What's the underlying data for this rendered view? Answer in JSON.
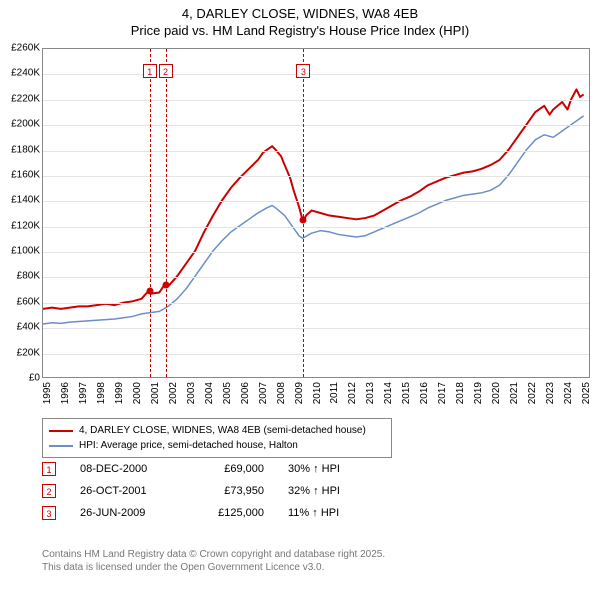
{
  "title": {
    "line1": "4, DARLEY CLOSE, WIDNES, WA8 4EB",
    "line2": "Price paid vs. HM Land Registry's House Price Index (HPI)"
  },
  "chart": {
    "type": "line",
    "plot_bg": "#ffffff",
    "border_color": "#888888",
    "grid_color": "#e4e4e4",
    "x": {
      "min": 1995,
      "max": 2025.5,
      "ticks": [
        1995,
        1996,
        1997,
        1998,
        1999,
        2000,
        2001,
        2002,
        2003,
        2004,
        2005,
        2006,
        2007,
        2008,
        2009,
        2010,
        2011,
        2012,
        2013,
        2014,
        2015,
        2016,
        2017,
        2018,
        2019,
        2020,
        2021,
        2022,
        2023,
        2024,
        2025
      ],
      "tick_fontsize": 10,
      "tick_rotation_deg": -90
    },
    "y": {
      "min": 0,
      "max": 260000,
      "ticks": [
        0,
        20000,
        40000,
        60000,
        80000,
        100000,
        120000,
        140000,
        160000,
        180000,
        200000,
        220000,
        240000,
        260000
      ],
      "tick_labels": [
        "£0",
        "£20K",
        "£40K",
        "£60K",
        "£80K",
        "£100K",
        "£120K",
        "£140K",
        "£160K",
        "£180K",
        "£200K",
        "£220K",
        "£240K",
        "£260K"
      ],
      "tick_fontsize": 10
    },
    "series": [
      {
        "id": "price_paid",
        "label": "4, DARLEY CLOSE, WIDNES, WA8 4EB (semi-detached house)",
        "color": "#cc0000",
        "line_width": 2,
        "points": [
          [
            1995.0,
            54000
          ],
          [
            1995.5,
            55000
          ],
          [
            1996.0,
            54000
          ],
          [
            1996.5,
            55000
          ],
          [
            1997.0,
            56000
          ],
          [
            1997.5,
            56000
          ],
          [
            1998.0,
            57000
          ],
          [
            1998.5,
            58000
          ],
          [
            1999.0,
            57000
          ],
          [
            1999.5,
            59000
          ],
          [
            2000.0,
            60000
          ],
          [
            2000.5,
            62000
          ],
          [
            2000.94,
            69000
          ],
          [
            2001.0,
            66000
          ],
          [
            2001.5,
            67000
          ],
          [
            2001.82,
            73950
          ],
          [
            2002.0,
            72000
          ],
          [
            2002.5,
            80000
          ],
          [
            2003.0,
            90000
          ],
          [
            2003.5,
            100000
          ],
          [
            2004.0,
            115000
          ],
          [
            2004.5,
            128000
          ],
          [
            2005.0,
            140000
          ],
          [
            2005.5,
            150000
          ],
          [
            2006.0,
            158000
          ],
          [
            2006.5,
            165000
          ],
          [
            2007.0,
            172000
          ],
          [
            2007.3,
            178000
          ],
          [
            2007.5,
            180000
          ],
          [
            2007.8,
            183000
          ],
          [
            2008.0,
            180000
          ],
          [
            2008.3,
            175000
          ],
          [
            2008.5,
            168000
          ],
          [
            2008.8,
            158000
          ],
          [
            2009.0,
            148000
          ],
          [
            2009.3,
            135000
          ],
          [
            2009.49,
            125000
          ],
          [
            2009.5,
            123000
          ],
          [
            2009.7,
            128000
          ],
          [
            2010.0,
            132000
          ],
          [
            2010.5,
            130000
          ],
          [
            2011.0,
            128000
          ],
          [
            2011.5,
            127000
          ],
          [
            2012.0,
            126000
          ],
          [
            2012.5,
            125000
          ],
          [
            2013.0,
            126000
          ],
          [
            2013.5,
            128000
          ],
          [
            2014.0,
            132000
          ],
          [
            2014.5,
            136000
          ],
          [
            2015.0,
            140000
          ],
          [
            2015.5,
            143000
          ],
          [
            2016.0,
            147000
          ],
          [
            2016.5,
            152000
          ],
          [
            2017.0,
            155000
          ],
          [
            2017.5,
            158000
          ],
          [
            2018.0,
            160000
          ],
          [
            2018.5,
            162000
          ],
          [
            2019.0,
            163000
          ],
          [
            2019.5,
            165000
          ],
          [
            2020.0,
            168000
          ],
          [
            2020.5,
            172000
          ],
          [
            2021.0,
            180000
          ],
          [
            2021.5,
            190000
          ],
          [
            2022.0,
            200000
          ],
          [
            2022.5,
            210000
          ],
          [
            2023.0,
            215000
          ],
          [
            2023.3,
            208000
          ],
          [
            2023.5,
            212000
          ],
          [
            2024.0,
            218000
          ],
          [
            2024.3,
            212000
          ],
          [
            2024.5,
            220000
          ],
          [
            2024.8,
            228000
          ],
          [
            2025.0,
            222000
          ],
          [
            2025.2,
            224000
          ]
        ]
      },
      {
        "id": "hpi",
        "label": "HPI: Average price, semi-detached house, Halton",
        "color": "#6a8fc5",
        "line_width": 1.5,
        "points": [
          [
            1995.0,
            42000
          ],
          [
            1995.5,
            43000
          ],
          [
            1996.0,
            42500
          ],
          [
            1996.5,
            43500
          ],
          [
            1997.0,
            44000
          ],
          [
            1997.5,
            44500
          ],
          [
            1998.0,
            45000
          ],
          [
            1998.5,
            45500
          ],
          [
            1999.0,
            46000
          ],
          [
            1999.5,
            47000
          ],
          [
            2000.0,
            48000
          ],
          [
            2000.5,
            50000
          ],
          [
            2001.0,
            51000
          ],
          [
            2001.5,
            52000
          ],
          [
            2002.0,
            56000
          ],
          [
            2002.5,
            62000
          ],
          [
            2003.0,
            70000
          ],
          [
            2003.5,
            80000
          ],
          [
            2004.0,
            90000
          ],
          [
            2004.5,
            100000
          ],
          [
            2005.0,
            108000
          ],
          [
            2005.5,
            115000
          ],
          [
            2006.0,
            120000
          ],
          [
            2006.5,
            125000
          ],
          [
            2007.0,
            130000
          ],
          [
            2007.5,
            134000
          ],
          [
            2007.8,
            136000
          ],
          [
            2008.0,
            134000
          ],
          [
            2008.5,
            128000
          ],
          [
            2009.0,
            118000
          ],
          [
            2009.3,
            112000
          ],
          [
            2009.5,
            110000
          ],
          [
            2010.0,
            114000
          ],
          [
            2010.5,
            116000
          ],
          [
            2011.0,
            115000
          ],
          [
            2011.5,
            113000
          ],
          [
            2012.0,
            112000
          ],
          [
            2012.5,
            111000
          ],
          [
            2013.0,
            112000
          ],
          [
            2013.5,
            115000
          ],
          [
            2014.0,
            118000
          ],
          [
            2014.5,
            121000
          ],
          [
            2015.0,
            124000
          ],
          [
            2015.5,
            127000
          ],
          [
            2016.0,
            130000
          ],
          [
            2016.5,
            134000
          ],
          [
            2017.0,
            137000
          ],
          [
            2017.5,
            140000
          ],
          [
            2018.0,
            142000
          ],
          [
            2018.5,
            144000
          ],
          [
            2019.0,
            145000
          ],
          [
            2019.5,
            146000
          ],
          [
            2020.0,
            148000
          ],
          [
            2020.5,
            152000
          ],
          [
            2021.0,
            160000
          ],
          [
            2021.5,
            170000
          ],
          [
            2022.0,
            180000
          ],
          [
            2022.5,
            188000
          ],
          [
            2023.0,
            192000
          ],
          [
            2023.5,
            190000
          ],
          [
            2024.0,
            195000
          ],
          [
            2024.5,
            200000
          ],
          [
            2025.0,
            205000
          ],
          [
            2025.2,
            207000
          ]
        ]
      }
    ],
    "sale_markers": [
      {
        "n": "1",
        "x": 2000.94,
        "y": 69000,
        "date": "08-DEC-2000",
        "price": "£69,000",
        "pct": "30%",
        "dir": "↑",
        "tag": "HPI"
      },
      {
        "n": "2",
        "x": 2001.82,
        "y": 73950,
        "date": "26-OCT-2001",
        "price": "£73,950",
        "pct": "32%",
        "dir": "↑",
        "tag": "HPI"
      },
      {
        "n": "3",
        "x": 2009.49,
        "y": 125000,
        "date": "26-JUN-2009",
        "price": "£125,000",
        "pct": "11%",
        "dir": "↑",
        "tag": "HPI"
      }
    ],
    "vline_color": "#cc0000",
    "marker_box_border": "#cc0000",
    "marker_box_bg": "#ffffff",
    "marker_box_text": "#cc0000",
    "marker_box_top_y": 248000,
    "dot_color": "#cc0000",
    "dot_radius": 3.5
  },
  "legend": {
    "border_color": "#888888",
    "fontsize": 10
  },
  "footer": {
    "line1": "Contains HM Land Registry data © Crown copyright and database right 2025.",
    "line2": "This data is licensed under the Open Government Licence v3.0.",
    "color": "#777777",
    "fontsize": 10
  }
}
